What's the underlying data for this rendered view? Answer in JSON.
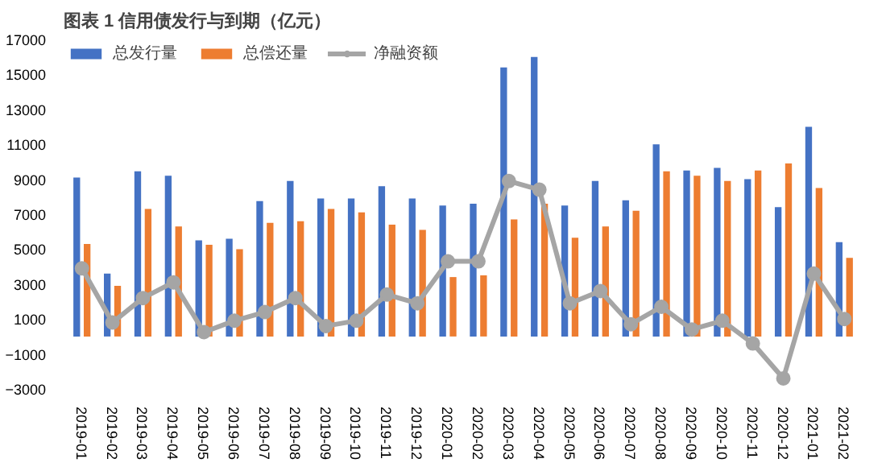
{
  "chart_data": {
    "type": "bar",
    "title": "图表 1  信用债发行与到期（亿元）",
    "categories": [
      "2019-01",
      "2019-02",
      "2019-03",
      "2019-04",
      "2019-05",
      "2019-06",
      "2019-07",
      "2019-08",
      "2019-09",
      "2019-10",
      "2019-11",
      "2019-12",
      "2020-01",
      "2020-02",
      "2020-03",
      "2020-04",
      "2020-05",
      "2020-06",
      "2020-07",
      "2020-08",
      "2020-09",
      "2020-10",
      "2020-11",
      "2020-12",
      "2021-01",
      "2021-02"
    ],
    "series": [
      {
        "name": "总发行量",
        "color": "#4472c4",
        "values": [
          9100,
          3600,
          9450,
          9200,
          5500,
          5600,
          7750,
          8900,
          7900,
          7900,
          8600,
          7900,
          7500,
          7600,
          15400,
          16000,
          7500,
          8900,
          7800,
          11000,
          9500,
          9650,
          9000,
          7400,
          12000,
          5400
        ]
      },
      {
        "name": "总偿还量",
        "color": "#ed7d31",
        "values": [
          5300,
          2900,
          7300,
          6300,
          5250,
          5000,
          6500,
          6600,
          7300,
          7100,
          6400,
          6100,
          3400,
          3500,
          6700,
          7600,
          5650,
          6300,
          7200,
          9450,
          9200,
          8900,
          9500,
          9900,
          8500,
          4500
        ]
      },
      {
        "name": "净融资额",
        "type": "line",
        "color": "#a5a5a5",
        "marker": "circle",
        "values": [
          3900,
          800,
          2200,
          3100,
          250,
          900,
          1400,
          2200,
          600,
          900,
          2400,
          1900,
          4300,
          4300,
          8900,
          8400,
          1900,
          2600,
          700,
          1700,
          400,
          900,
          -400,
          -2400,
          3600,
          1000
        ]
      }
    ],
    "ylim": [
      -3000,
      17000
    ],
    "yticks": [
      -3000,
      -1000,
      1000,
      3000,
      5000,
      7000,
      9000,
      11000,
      13000,
      15000,
      17000
    ],
    "grid": false,
    "legend": "top"
  }
}
